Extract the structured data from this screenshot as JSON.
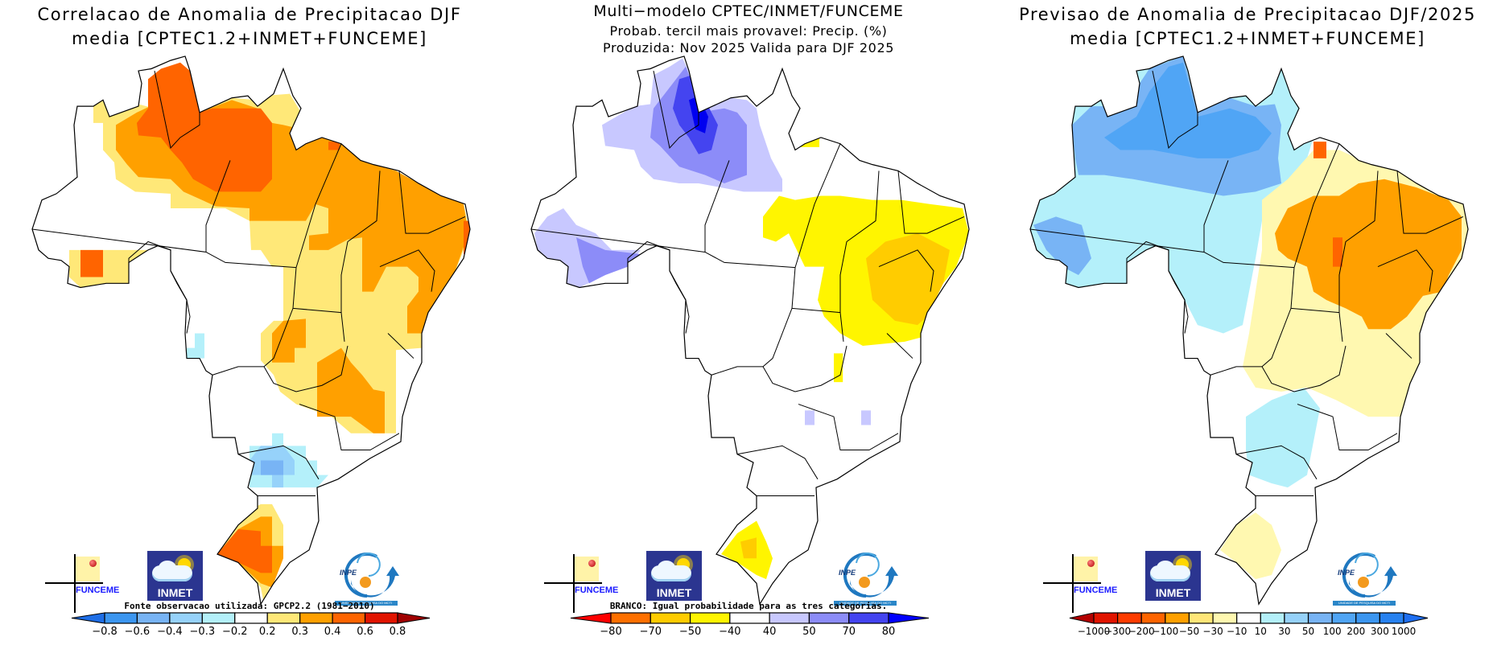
{
  "panels": [
    {
      "key": "correlation",
      "title": [
        "Correlacao de Anomalia de Precipitacao DJF",
        "media [CPTEC1.2+INMET+FUNCEME]"
      ],
      "note": "Fonte observacao utilizada: GPCP2.2 (1981-2010)",
      "colorbar": {
        "left_arrow": "#1e6ee6",
        "right_arrow": "#a00000",
        "colors": [
          "#3c96f0",
          "#78b4f5",
          "#96d2fa",
          "#b4f0fa",
          "#ffffff",
          "#ffe878",
          "#ffa000",
          "#ff6400",
          "#e11400"
        ],
        "labels": [
          "-0.8",
          "-0.6",
          "-0.4",
          "-0.3",
          "-0.2",
          "0.2",
          "0.3",
          "0.4",
          "0.6",
          "0.8"
        ]
      }
    },
    {
      "key": "tercile-probability",
      "title": [
        "Multi-modelo CPTEC/INMET/FUNCEME",
        "Probab. tercil mais provavel: Precip. (%)",
        "Produzida: Nov 2025  Valida para DJF 2025"
      ],
      "note": "BRANCO: Igual probabilidade para as tres categorias.",
      "colorbar": {
        "left_arrow": "#ff0000",
        "right_arrow": "#0000ff",
        "colors": [
          "#ff7000",
          "#ffcc00",
          "#fff500",
          "#ffffff",
          "#c8c8ff",
          "#8c8cf8",
          "#4444f0"
        ],
        "labels": [
          "-80",
          "-70",
          "-50",
          "-40",
          "40",
          "50",
          "70",
          "80"
        ]
      }
    },
    {
      "key": "anomaly-forecast",
      "title": [
        "Previsao de Anomalia de Precipitacao DJF/2025",
        "media [CPTEC1.2+INMET+FUNCEME]"
      ],
      "note": "",
      "colorbar": {
        "left_arrow": "#b40000",
        "right_arrow": "#1e6ef0",
        "colors": [
          "#e11400",
          "#ff3c00",
          "#ff6400",
          "#ffa000",
          "#ffe678",
          "#fff8b0",
          "#ffffff",
          "#b4f0fa",
          "#96d2fa",
          "#78b4f5",
          "#50a5f5",
          "#3c96f0",
          "#2882f0"
        ],
        "labels": [
          "-1000",
          "-300",
          "-200",
          "-100",
          "-50",
          "-30",
          "-10",
          "10",
          "30",
          "50",
          "100",
          "200",
          "300",
          "1000"
        ]
      }
    }
  ],
  "logos": {
    "funceme": "FUNCEME",
    "inmet": "INMET",
    "inpe": "INPE",
    "inpe_tagline": "UNIDADE DE PESQUISA DO MCTI"
  }
}
